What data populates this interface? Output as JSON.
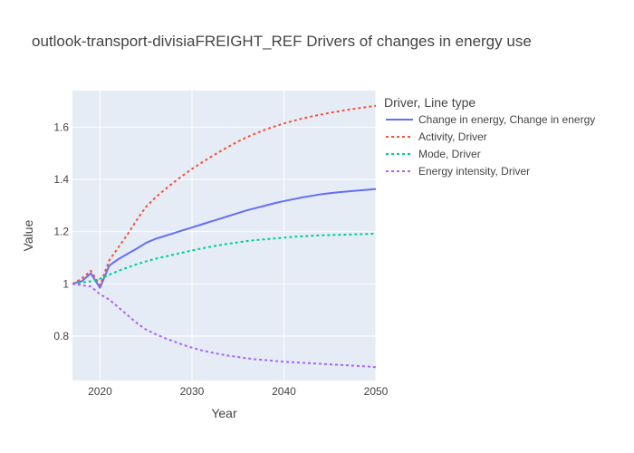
{
  "chart_data": {
    "type": "line",
    "title": "outlook-transport-divisiaFREIGHT_REF Drivers of changes in energy use",
    "xlabel": "Year",
    "ylabel": "Value",
    "xlim": [
      2017,
      2050
    ],
    "ylim": [
      0.63,
      1.74
    ],
    "grid": true,
    "plot_background": "#E5ECF6",
    "x_ticks": [
      2020,
      2030,
      2040,
      2050
    ],
    "x_tick_labels": [
      "2020",
      "2030",
      "2040",
      "2050"
    ],
    "y_ticks": [
      0.8,
      1,
      1.2,
      1.4,
      1.6
    ],
    "y_tick_labels": [
      "0.8",
      "1",
      "1.2",
      "1.4",
      "1.6"
    ],
    "legend": {
      "title": "Driver, Line type",
      "placement": "right"
    },
    "x": [
      2017,
      2018,
      2019,
      2020,
      2021,
      2022,
      2023,
      2024,
      2025,
      2026,
      2027,
      2028,
      2029,
      2030,
      2031,
      2032,
      2033,
      2034,
      2035,
      2036,
      2037,
      2038,
      2039,
      2040,
      2041,
      2042,
      2043,
      2044,
      2045,
      2046,
      2047,
      2048,
      2049,
      2050
    ],
    "series": [
      {
        "name": "Change in energy, Change in energy",
        "color": "#636EFA",
        "dash": "solid",
        "values": [
          1.0,
          1.01,
          1.04,
          0.985,
          1.07,
          1.095,
          1.115,
          1.135,
          1.157,
          1.172,
          1.183,
          1.194,
          1.205,
          1.216,
          1.227,
          1.238,
          1.249,
          1.26,
          1.271,
          1.282,
          1.291,
          1.3,
          1.309,
          1.317,
          1.324,
          1.331,
          1.337,
          1.343,
          1.347,
          1.351,
          1.354,
          1.357,
          1.36,
          1.363
        ]
      },
      {
        "name": "Activity, Driver",
        "color": "#EF553B",
        "dash": "dot",
        "values": [
          1.0,
          1.02,
          1.05,
          0.995,
          1.09,
          1.14,
          1.19,
          1.245,
          1.295,
          1.33,
          1.36,
          1.388,
          1.415,
          1.44,
          1.463,
          1.485,
          1.506,
          1.526,
          1.545,
          1.562,
          1.577,
          1.591,
          1.603,
          1.614,
          1.624,
          1.633,
          1.641,
          1.648,
          1.655,
          1.661,
          1.667,
          1.672,
          1.677,
          1.682
        ]
      },
      {
        "name": "Mode, Driver",
        "color": "#00CC96",
        "dash": "dot",
        "values": [
          1.0,
          1.005,
          1.01,
          1.02,
          1.035,
          1.05,
          1.063,
          1.075,
          1.086,
          1.096,
          1.104,
          1.112,
          1.12,
          1.128,
          1.135,
          1.142,
          1.148,
          1.154,
          1.159,
          1.164,
          1.168,
          1.171,
          1.174,
          1.177,
          1.18,
          1.182,
          1.184,
          1.186,
          1.187,
          1.188,
          1.189,
          1.19,
          1.191,
          1.192
        ]
      },
      {
        "name": "Energy intensity, Driver",
        "color": "#AB63FA",
        "dash": "dot",
        "values": [
          1.0,
          0.995,
          0.99,
          0.96,
          0.94,
          0.91,
          0.88,
          0.85,
          0.825,
          0.808,
          0.793,
          0.78,
          0.767,
          0.756,
          0.746,
          0.738,
          0.731,
          0.725,
          0.72,
          0.715,
          0.711,
          0.708,
          0.705,
          0.702,
          0.7,
          0.698,
          0.696,
          0.694,
          0.692,
          0.69,
          0.688,
          0.686,
          0.684,
          0.681
        ]
      }
    ]
  }
}
